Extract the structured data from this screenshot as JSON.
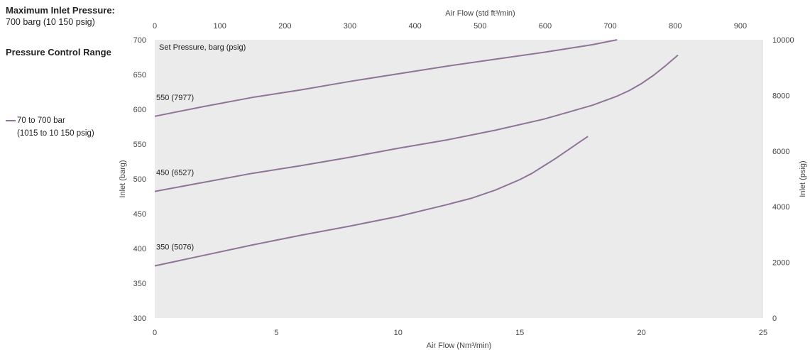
{
  "sidebar": {
    "max_inlet_title": "Maximum Inlet Pressure:",
    "max_inlet_value": "700 barg (10 150 psig)",
    "control_range_title": "Pressure Control Range",
    "legend_line1": "70 to 700 bar",
    "legend_line2": "(1015 to 10 150 psig)"
  },
  "colors": {
    "curve": "#8e7597",
    "plot_bg": "#ebebeb",
    "axis_text": "#444444"
  },
  "chart_data": {
    "type": "line",
    "title": "",
    "xlabel": "Air Flow (Nm³/min)",
    "x2label": "Air Flow (std ft³/min)",
    "ylabel": "Inlet (barg)",
    "y2label": "Inlet (psig)",
    "xlim": [
      0,
      25
    ],
    "ylim": [
      300,
      700
    ],
    "x2lim": [
      0,
      935
    ],
    "y2lim": [
      0,
      10000
    ],
    "x_ticks": [
      0,
      5,
      10,
      15,
      20,
      25
    ],
    "y_ticks": [
      300,
      350,
      400,
      450,
      500,
      550,
      600,
      650,
      700
    ],
    "x2_ticks": [
      0,
      100,
      200,
      300,
      400,
      500,
      600,
      700,
      800,
      900
    ],
    "y2_ticks": [
      0,
      2000,
      4000,
      6000,
      8000,
      10000
    ],
    "legend_title": "Set Pressure, barg (psig)",
    "grid": false,
    "series": [
      {
        "name": "550 (7977)",
        "x": [
          0,
          2,
          4,
          6,
          8,
          10,
          12,
          14,
          16,
          18,
          19
        ],
        "y": [
          590,
          604,
          617,
          628,
          640,
          651,
          662,
          672,
          682,
          693,
          700
        ]
      },
      {
        "name": "450 (6527)",
        "x": [
          0,
          2,
          4,
          6,
          8,
          10,
          12,
          14,
          16,
          17,
          18,
          19,
          19.5,
          20,
          20.5,
          21,
          21.5
        ],
        "y": [
          482,
          495,
          508,
          519,
          531,
          544,
          556,
          570,
          586,
          596,
          606,
          619,
          627,
          637,
          649,
          663,
          678
        ]
      },
      {
        "name": "350 (5076)",
        "x": [
          0,
          2,
          4,
          6,
          8,
          10,
          12,
          13,
          14,
          15,
          15.5,
          16,
          16.5,
          17,
          17.5,
          17.8
        ],
        "y": [
          375,
          390,
          405,
          419,
          432,
          446,
          463,
          472,
          484,
          499,
          508,
          519,
          530,
          542,
          554,
          561
        ]
      }
    ]
  }
}
